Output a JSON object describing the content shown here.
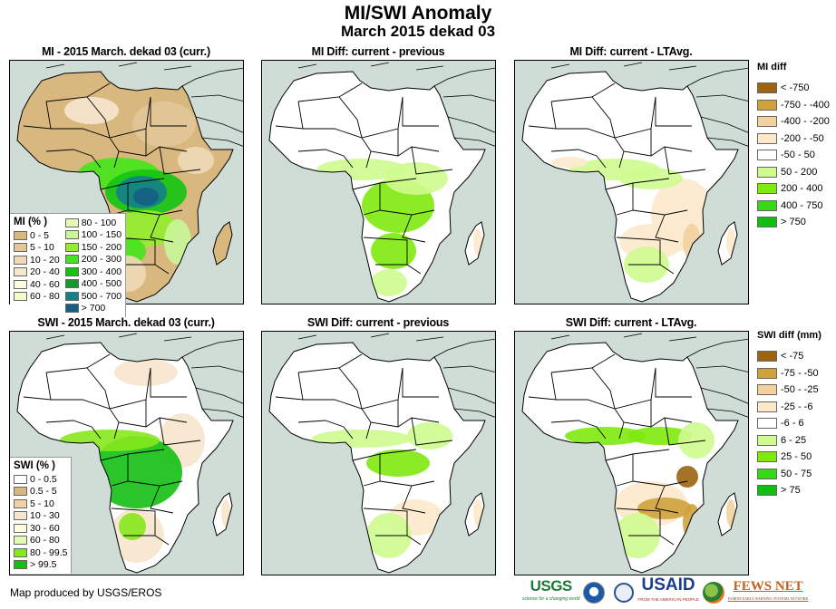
{
  "header": {
    "title": "MI/SWI Anomaly",
    "subtitle": "March 2015 dekad 03"
  },
  "panels": [
    {
      "id": "mi-current",
      "title": "MI - 2015 March. dekad 03 (curr.)",
      "variable": "MI",
      "type": "current"
    },
    {
      "id": "mi-diff-previous",
      "title": "MI Diff: current - previous",
      "variable": "MI",
      "type": "diff-previous"
    },
    {
      "id": "mi-diff-ltavg",
      "title": "MI Diff: current - LTAvg.",
      "variable": "MI",
      "type": "diff-ltavg"
    },
    {
      "id": "swi-current",
      "title": "SWI - 2015 March. dekad 03 (curr.)",
      "variable": "SWI",
      "type": "current"
    },
    {
      "id": "swi-diff-previous",
      "title": "SWI Diff: current - previous",
      "variable": "SWI",
      "type": "diff-previous"
    },
    {
      "id": "swi-diff-ltavg",
      "title": "SWI Diff: current - LTAvg.",
      "variable": "SWI",
      "type": "diff-ltavg"
    }
  ],
  "legends": {
    "mi_percent": {
      "title": "MI (% )",
      "items": [
        {
          "label": "0 - 5",
          "color": "#d8b87e"
        },
        {
          "label": "5 - 10",
          "color": "#e3c79a"
        },
        {
          "label": "10 - 20",
          "color": "#efd9b8"
        },
        {
          "label": "20 - 40",
          "color": "#f7e7d0"
        },
        {
          "label": "40 - 60",
          "color": "#fdfbe0"
        },
        {
          "label": "60 - 80",
          "color": "#f2fcc6"
        },
        {
          "label": "80 - 100",
          "color": "#e4fbb7"
        },
        {
          "label": "100 - 150",
          "color": "#c9f79a"
        },
        {
          "label": "150 - 200",
          "color": "#94ee2e"
        },
        {
          "label": "200 - 300",
          "color": "#44e51a"
        },
        {
          "label": "300 - 400",
          "color": "#13c413"
        },
        {
          "label": "400 - 500",
          "color": "#149a2c"
        },
        {
          "label": "500 - 700",
          "color": "#13808a"
        },
        {
          "label": "> 700",
          "color": "#145f86"
        }
      ]
    },
    "swi_percent": {
      "title": "SWI (% )",
      "items": [
        {
          "label": "0 - 0.5",
          "color": "#ffffff"
        },
        {
          "label": "0.5 - 5",
          "color": "#d8b87e"
        },
        {
          "label": "5 - 10",
          "color": "#efd3a6"
        },
        {
          "label": "10 - 30",
          "color": "#f8e6cc"
        },
        {
          "label": "30 - 60",
          "color": "#fdfbe0"
        },
        {
          "label": "60 - 80",
          "color": "#e6fbb2"
        },
        {
          "label": "80 - 99.5",
          "color": "#86e81d"
        },
        {
          "label": "> 99.5",
          "color": "#13bf13"
        }
      ]
    },
    "mi_diff": {
      "title": "MI diff",
      "items": [
        {
          "label": "< -750",
          "color": "#9a6410"
        },
        {
          "label": "-750 - -400",
          "color": "#cfa23c"
        },
        {
          "label": "-400 - -200",
          "color": "#f2d19e"
        },
        {
          "label": "-200 - -50",
          "color": "#fde9cc"
        },
        {
          "label": "-50 - 50",
          "color": "#ffffff"
        },
        {
          "label": "50 - 200",
          "color": "#cffb8f"
        },
        {
          "label": "200 - 400",
          "color": "#7ee90c"
        },
        {
          "label": "400 - 750",
          "color": "#37d916"
        },
        {
          "label": "> 750",
          "color": "#11bf11"
        }
      ]
    },
    "swi_diff": {
      "title": "SWI diff (mm)",
      "items": [
        {
          "label": "< -75",
          "color": "#9a6410"
        },
        {
          "label": "-75 - -50",
          "color": "#cfa23c"
        },
        {
          "label": "-50 - -25",
          "color": "#f2d19e"
        },
        {
          "label": "-25 - -6",
          "color": "#fde9cc"
        },
        {
          "label": "-6 - 6",
          "color": "#ffffff"
        },
        {
          "label": "6 - 25",
          "color": "#cffb8f"
        },
        {
          "label": "25 - 50",
          "color": "#7ee90c"
        },
        {
          "label": "50 - 75",
          "color": "#37d916"
        },
        {
          "label": "> 75",
          "color": "#11bf11"
        }
      ]
    }
  },
  "colors": {
    "ocean": "#cfddd6",
    "border": "#000000"
  },
  "footer": {
    "credit": "Map produced by USGS/EROS",
    "logos": [
      {
        "name": "USGS",
        "tagline": "science for a changing world"
      },
      {
        "name": "NOAA"
      },
      {
        "name": "USAID seal"
      },
      {
        "name": "USAID",
        "tagline": "FROM THE AMERICAN PEOPLE"
      },
      {
        "name": "FEWS NET",
        "tagline": "FAMINE EARLY WARNING SYSTEMS NETWORK"
      }
    ]
  }
}
